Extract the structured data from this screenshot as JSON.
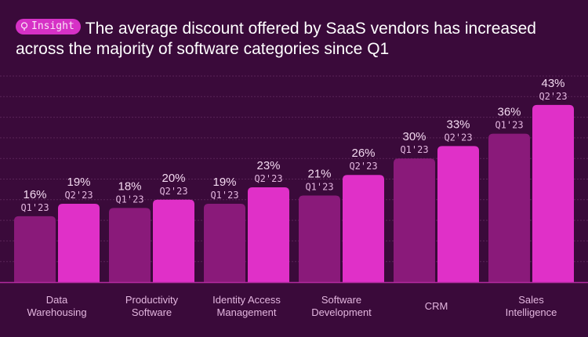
{
  "header": {
    "badge_icon": "lightbulb-icon",
    "badge_label": "Insight",
    "title": "The average discount offered by SaaS vendors has increased across the majority of software categories since Q1"
  },
  "colors": {
    "background": "#3a0a3a",
    "q1_bar": "#8a1a7a",
    "q2_bar": "#e030c8",
    "label_text": "#f3d9f0",
    "period_text": "#e3b6df",
    "gridline": "#5a2458",
    "baseline": "#b02a9e"
  },
  "chart_data": {
    "type": "bar",
    "title": "The average discount offered by SaaS vendors has increased across the majority of software categories since Q1",
    "xlabel": "",
    "ylabel": "",
    "ylim": [
      0,
      45
    ],
    "grid": true,
    "legend": "none (series labels printed above each bar)",
    "categories": [
      [
        "Data",
        "Warehousing"
      ],
      [
        "Productivity",
        "Software"
      ],
      [
        "Identity Access",
        "Management"
      ],
      [
        "Software",
        "Development"
      ],
      [
        "CRM"
      ],
      [
        "Sales",
        "Intelligence"
      ]
    ],
    "series": [
      {
        "name": "Q1'23",
        "values": [
          16,
          18,
          19,
          21,
          30,
          36
        ]
      },
      {
        "name": "Q2'23",
        "values": [
          19,
          20,
          23,
          26,
          33,
          43
        ]
      }
    ],
    "value_suffix": "%"
  }
}
